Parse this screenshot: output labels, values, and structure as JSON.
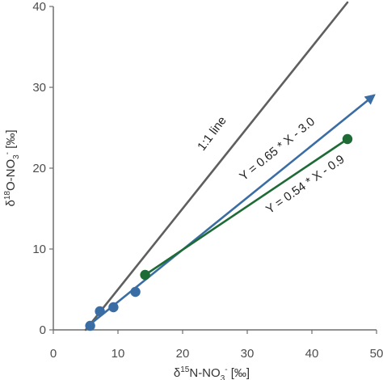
{
  "chart_data": {
    "type": "scatter",
    "xlim": [
      0,
      50
    ],
    "ylim": [
      0,
      40
    ],
    "xticks": [
      0,
      10,
      20,
      30,
      40,
      50
    ],
    "yticks": [
      0,
      10,
      20,
      30,
      40
    ],
    "xlabel": {
      "pre": "δ",
      "sup1": "15",
      "mid": "N-NO",
      "sub": "3",
      "sup2": "-",
      "post": " [‰]"
    },
    "ylabel": {
      "pre": "δ",
      "sup1": "18",
      "mid": "O-NO",
      "sub": "3",
      "sup2": "-",
      "post": " [‰]"
    },
    "grid": false,
    "colors": {
      "blue": "#3a6da3",
      "green": "#1e6b35",
      "gray": "#5f5f5f",
      "axis": "#6e6e6e"
    },
    "series": [
      {
        "color": "blue",
        "points": [
          [
            5.7,
            0.5
          ],
          [
            7.2,
            2.3
          ],
          [
            9.3,
            2.8
          ],
          [
            12.7,
            4.7
          ]
        ]
      },
      {
        "color": "green",
        "points": [
          [
            14.2,
            6.8
          ],
          [
            45.5,
            23.6
          ]
        ]
      }
    ],
    "lines": [
      {
        "color": "gray",
        "from": [
          5.0,
          0.0
        ],
        "to": [
          45.5,
          40.5
        ]
      },
      {
        "color": "blue",
        "from": [
          5.4,
          0.5
        ],
        "to": [
          49.6,
          29.0
        ],
        "arrow": true
      },
      {
        "color": "green",
        "from": [
          14.2,
          6.8
        ],
        "to": [
          45.5,
          23.6
        ]
      }
    ],
    "annotations": [
      {
        "text": "1:1 line",
        "at": [
          25.0,
          24.0
        ],
        "angle": -53
      },
      {
        "text": "Y = 0.65 * X - 3.0",
        "at": [
          35.0,
          22.0
        ],
        "angle": -39
      },
      {
        "text": "Y = 0.54 * X - 0.9",
        "at": [
          39.3,
          17.6
        ],
        "angle": -35
      }
    ]
  }
}
